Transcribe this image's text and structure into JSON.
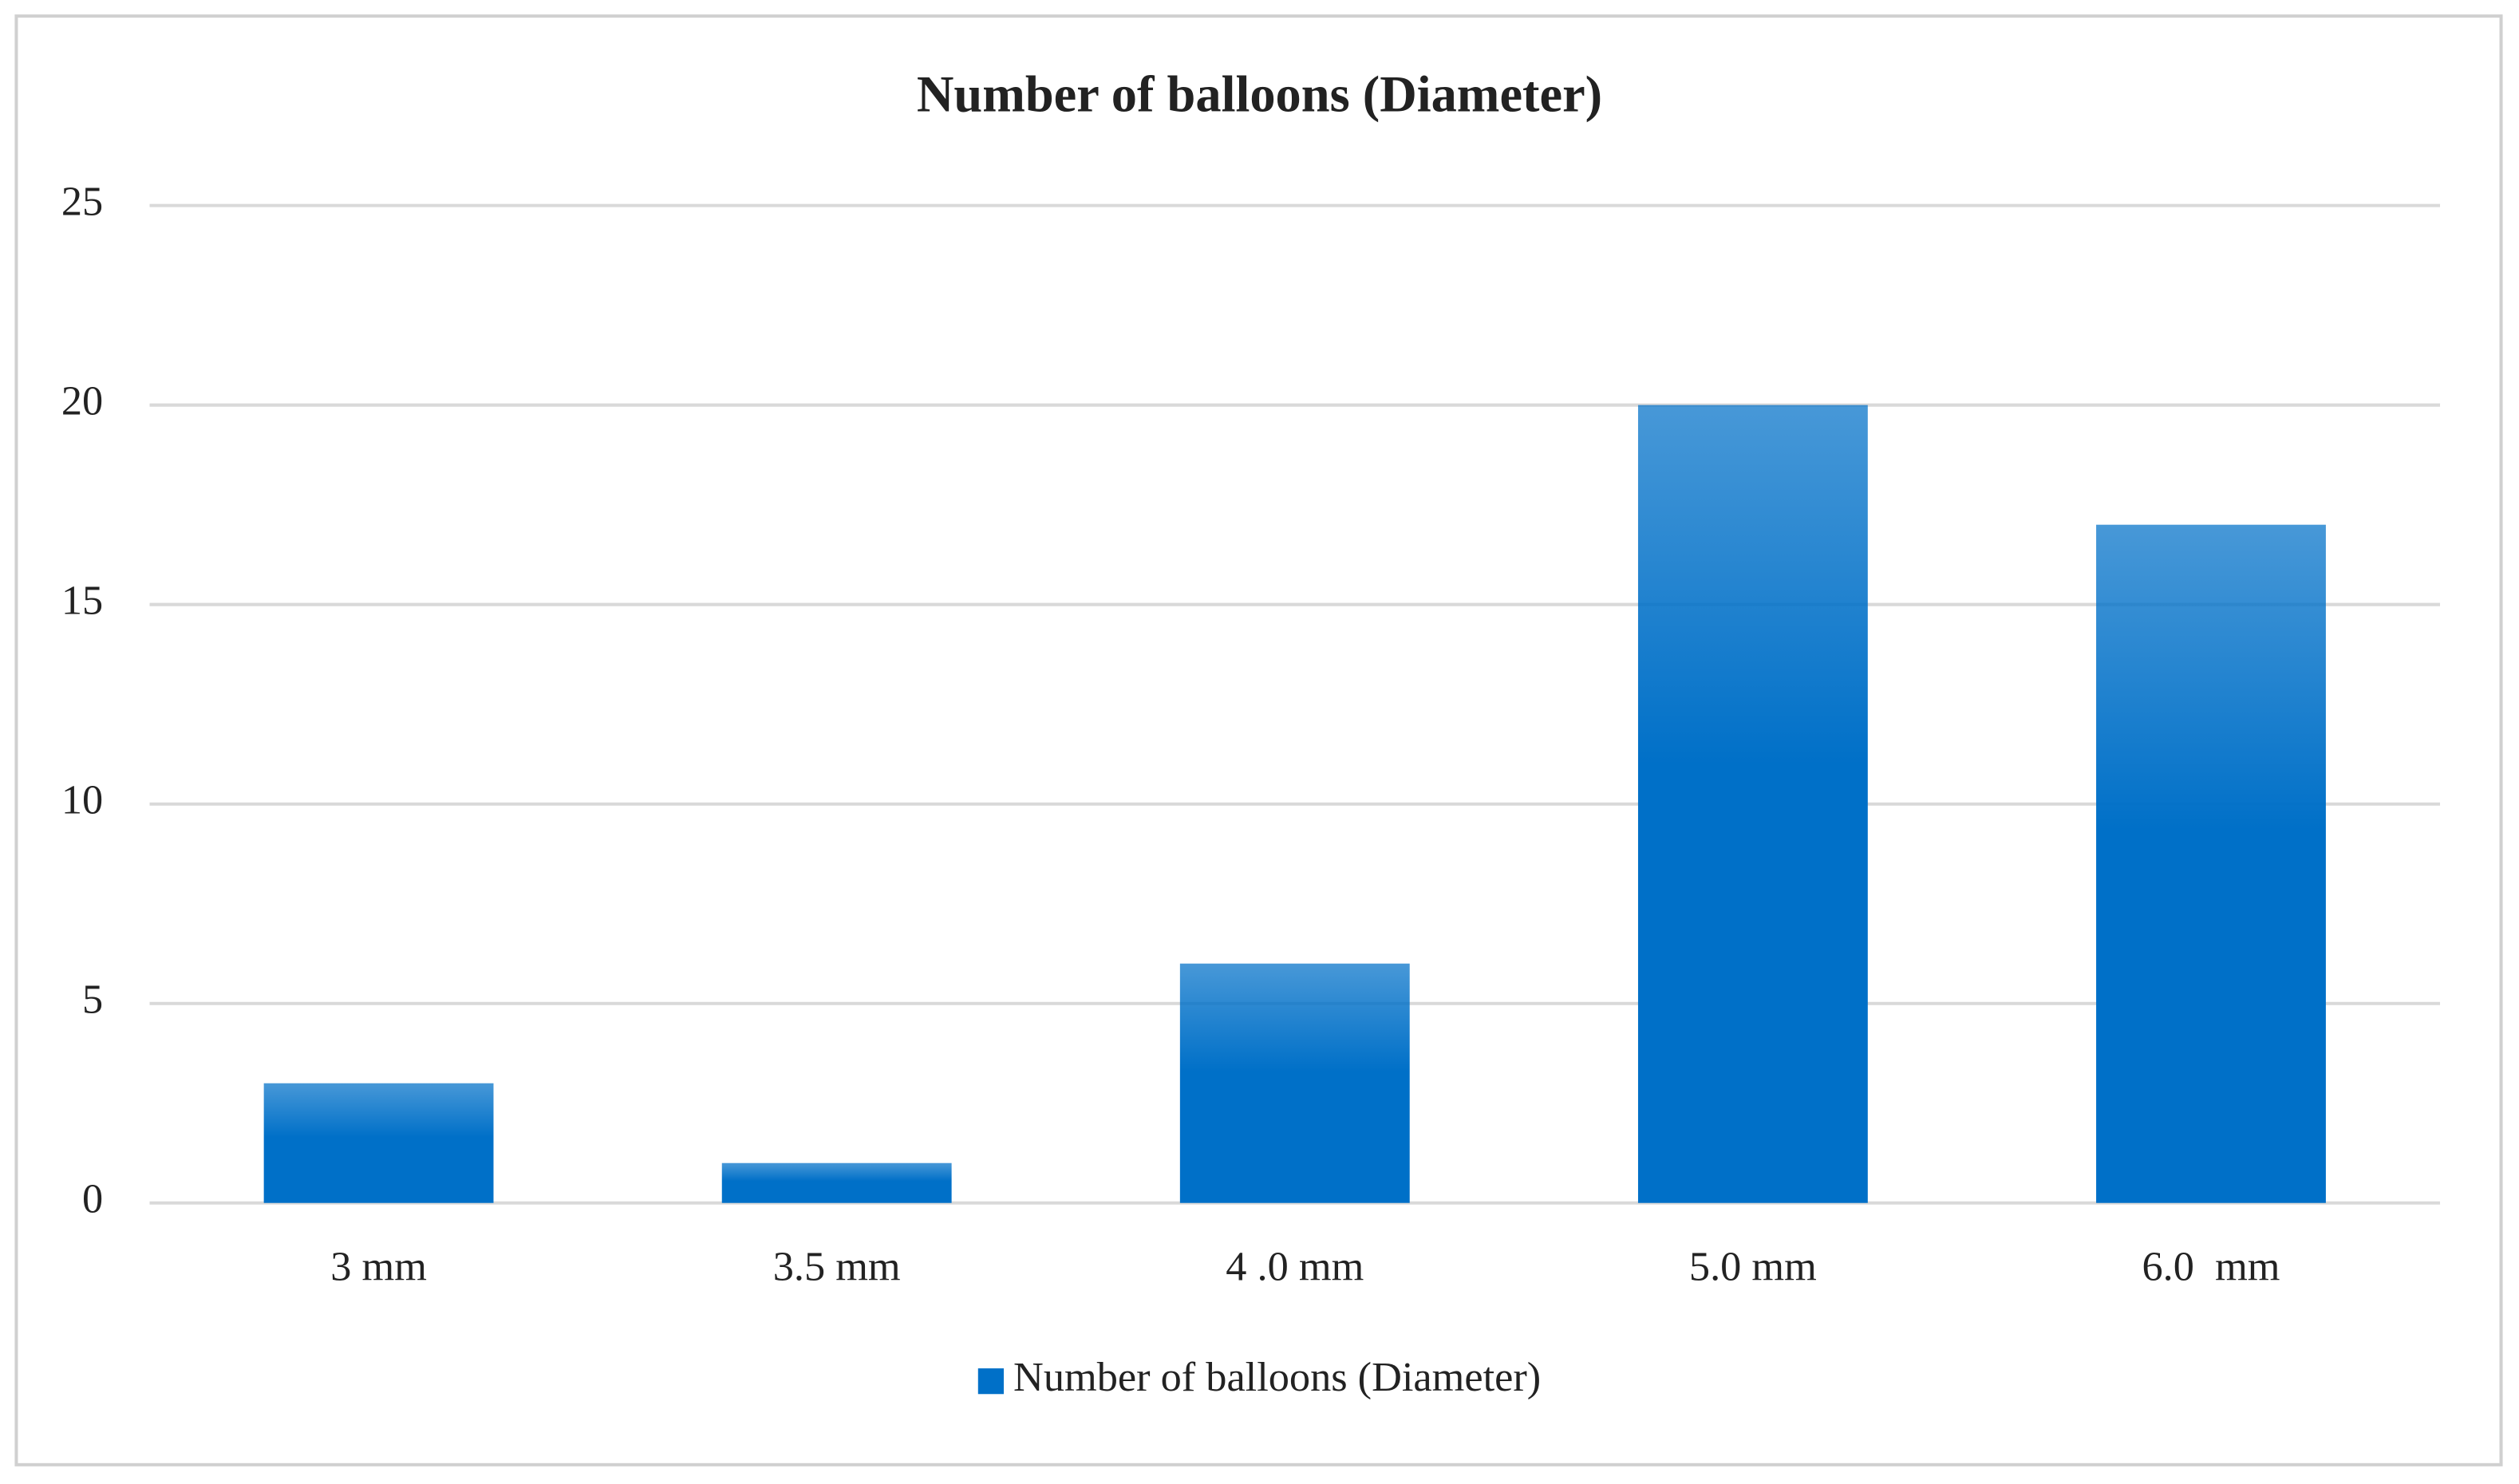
{
  "chart_data": {
    "type": "bar",
    "title": "Number of balloons (Diameter)",
    "categories": [
      "3 mm",
      "3.5 mm",
      "4 .0 mm",
      "5.0 mm",
      "6.0  mm"
    ],
    "series": [
      {
        "name": "Number of balloons (Diameter)",
        "color": "#0070c8",
        "values": [
          3,
          1,
          6,
          20,
          17
        ]
      }
    ],
    "ylim": [
      0,
      25
    ],
    "yticks": [
      0,
      5,
      10,
      15,
      20,
      25
    ],
    "grid": true,
    "legend": "bottom"
  }
}
